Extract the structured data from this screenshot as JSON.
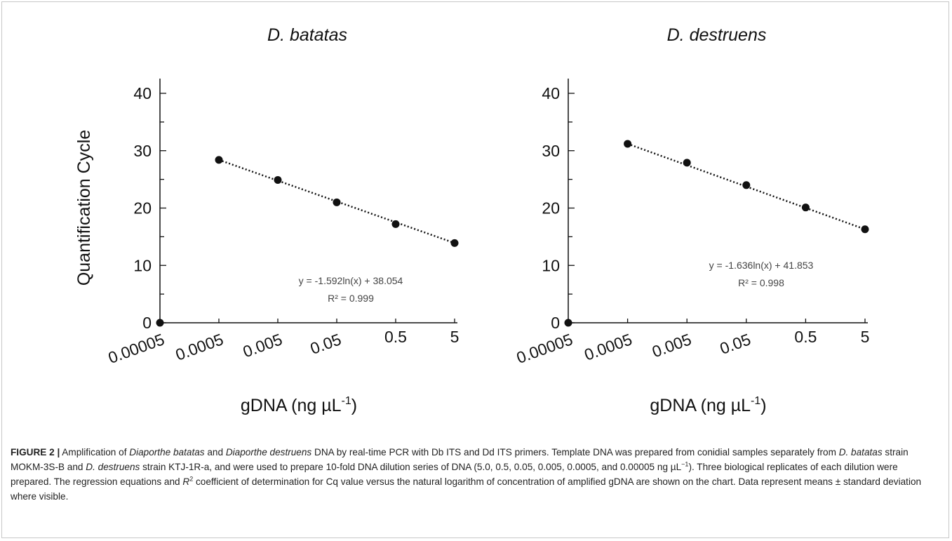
{
  "chart_data": [
    {
      "type": "scatter",
      "title": "D. batatas",
      "xlabel": "gDNA (ng µL-1)",
      "ylabel": "Quantification Cycle",
      "x_categories": [
        "0.00005",
        "0.0005",
        "0.005",
        "0.05",
        "0.5",
        "5"
      ],
      "x_scale": "log10",
      "ylim": [
        0,
        40
      ],
      "yticks": [
        "0",
        "10",
        "20",
        "30",
        "40"
      ],
      "points": [
        {
          "x": 5e-05,
          "y": 0
        },
        {
          "x": 0.0005,
          "y": 28.4
        },
        {
          "x": 0.005,
          "y": 24.9
        },
        {
          "x": 0.05,
          "y": 21.0
        },
        {
          "x": 0.5,
          "y": 17.2
        },
        {
          "x": 5,
          "y": 13.9
        }
      ],
      "trendline": {
        "from_x": 0.0005,
        "to_x": 5,
        "style": "dotted"
      },
      "equation": "y = -1.592ln(x) + 38.054",
      "r_squared": "R² = 0.999",
      "grid": false
    },
    {
      "type": "scatter",
      "title": "D. destruens",
      "xlabel": "gDNA (ng µL-1)",
      "ylabel": "",
      "x_categories": [
        "0.00005",
        "0.0005",
        "0.005",
        "0.05",
        "0.5",
        "5"
      ],
      "x_scale": "log10",
      "ylim": [
        0,
        40
      ],
      "yticks": [
        "0",
        "10",
        "20",
        "30",
        "40"
      ],
      "points": [
        {
          "x": 5e-05,
          "y": 0
        },
        {
          "x": 0.0005,
          "y": 31.2
        },
        {
          "x": 0.005,
          "y": 27.9
        },
        {
          "x": 0.05,
          "y": 24.0
        },
        {
          "x": 0.5,
          "y": 20.1
        },
        {
          "x": 5,
          "y": 16.3
        }
      ],
      "trendline": {
        "from_x": 0.0005,
        "to_x": 5,
        "style": "dotted"
      },
      "equation": "y = -1.636ln(x) + 41.853",
      "r_squared": "R² = 0.998",
      "grid": false
    }
  ],
  "caption": {
    "label": "FIGURE 2 |",
    "segments": [
      {
        "t": " Amplification of ",
        "i": false
      },
      {
        "t": "Diaporthe batatas",
        "i": true
      },
      {
        "t": " and ",
        "i": false
      },
      {
        "t": "Diaporthe destruens",
        "i": true
      },
      {
        "t": " DNA by real-time PCR with Db ITS and Dd ITS primers. Template DNA was prepared from conidial samples separately from ",
        "i": false
      },
      {
        "t": "D. batatas",
        "i": true
      },
      {
        "t": " strain MOKM-3S-B and ",
        "i": false
      },
      {
        "t": "D. destruens",
        "i": true
      },
      {
        "t": " strain KTJ-1R-a, and were used to prepare 10-fold DNA dilution series of DNA (5.0, 0.5, 0.05, 0.005, 0.0005, and 0.00005 ng µL",
        "i": false
      },
      {
        "t": "−1",
        "sup": true
      },
      {
        "t": "). Three biological replicates of each dilution were prepared. The regression equations and ",
        "i": false
      },
      {
        "t": "R",
        "i": true
      },
      {
        "t": "2",
        "sup": true
      },
      {
        "t": " coefficient of determination for Cq value versus the natural logarithm of concentration of amplified gDNA are shown on the chart. Data represent means ± standard deviation where visible.",
        "i": false
      }
    ]
  }
}
